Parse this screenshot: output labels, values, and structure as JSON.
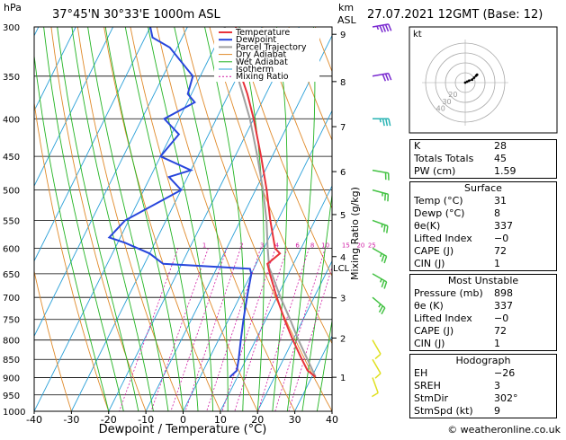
{
  "header": {
    "pressure_unit": "hPa",
    "location": "37°45'N  30°33'E  1000m  ASL",
    "height_unit_line1": "km",
    "height_unit_line2": "ASL",
    "datetime": "27.07.2021  12GMT  (Base: 12)",
    "mixing_ratio_axis_label": "Mixing Ratio (g/kg)",
    "footer": "© weatheronline.co.uk"
  },
  "legend": [
    "Temperature",
    "Dewpoint",
    "Parcel Trajectory",
    "Dry Adiabat",
    "Wet Adiabat",
    "Isotherm",
    "Mixing Ratio"
  ],
  "colors": {
    "temperature": "#e8323a",
    "dewpoint": "#2846dc",
    "parcel": "#a0a0a0",
    "dry_adiabat": "#e08a2a",
    "wet_adiabat": "#22b422",
    "isotherm": "#2aa0d8",
    "mixing_ratio": "#d01ca4",
    "wind_upper": "#7a2ad0",
    "wind_mid": "#2ab4b4",
    "wind_low": "#44c244",
    "wind_sfc": "#e0e020"
  },
  "chart_data": {
    "type": "skew-t",
    "title": "37°45'N  30°33'E  1000m  ASL",
    "xlabel": "Dewpoint / Temperature (°C)",
    "ylabel": "hPa",
    "xlim": [
      -40,
      40
    ],
    "ylim": [
      1000,
      300
    ],
    "x_ticks": [
      -40,
      -30,
      -20,
      -10,
      0,
      10,
      20,
      30,
      40
    ],
    "pressure_levels": [
      300,
      350,
      400,
      450,
      500,
      550,
      600,
      650,
      700,
      750,
      800,
      850,
      900,
      950,
      1000
    ],
    "km_ticks": [
      {
        "label": "9",
        "p": 307
      },
      {
        "label": "8",
        "p": 356
      },
      {
        "label": "7",
        "p": 410
      },
      {
        "label": "6",
        "p": 472
      },
      {
        "label": "5",
        "p": 540
      },
      {
        "label": "4",
        "p": 616
      },
      {
        "label": "3",
        "p": 701
      },
      {
        "label": "2",
        "p": 795
      },
      {
        "label": "1",
        "p": 899
      }
    ],
    "lcl": {
      "label": "LCL",
      "p": 638
    },
    "mixing_ratio_labels": [
      {
        "label": "1",
        "t": -16
      },
      {
        "label": "2",
        "t": -6
      },
      {
        "label": "3",
        "t": -0.5
      },
      {
        "label": "4",
        "t": 3.5
      },
      {
        "label": "6",
        "t": 9
      },
      {
        "label": "8",
        "t": 13
      },
      {
        "label": "10",
        "t": 16.5
      },
      {
        "label": "15",
        "t": 22
      },
      {
        "label": "20",
        "t": 26
      },
      {
        "label": "25",
        "t": 29
      }
    ],
    "series": [
      {
        "name": "Temperature",
        "points": [
          {
            "p": 898,
            "t": 31
          },
          {
            "p": 880,
            "t": 28
          },
          {
            "p": 850,
            "t": 25
          },
          {
            "p": 800,
            "t": 20
          },
          {
            "p": 750,
            "t": 15
          },
          {
            "p": 700,
            "t": 10
          },
          {
            "p": 650,
            "t": 5
          },
          {
            "p": 630,
            "t": 3
          },
          {
            "p": 610,
            "t": 5
          },
          {
            "p": 600,
            "t": 3
          },
          {
            "p": 550,
            "t": -2
          },
          {
            "p": 500,
            "t": -7
          },
          {
            "p": 450,
            "t": -13
          },
          {
            "p": 400,
            "t": -20
          },
          {
            "p": 370,
            "t": -25
          },
          {
            "p": 350,
            "t": -29
          },
          {
            "p": 320,
            "t": -34
          },
          {
            "p": 300,
            "t": -37
          }
        ]
      },
      {
        "name": "Dewpoint",
        "points": [
          {
            "p": 898,
            "t": 8
          },
          {
            "p": 880,
            "t": 9
          },
          {
            "p": 850,
            "t": 8
          },
          {
            "p": 800,
            "t": 6
          },
          {
            "p": 750,
            "t": 4
          },
          {
            "p": 700,
            "t": 2
          },
          {
            "p": 650,
            "t": 0
          },
          {
            "p": 640,
            "t": -1
          },
          {
            "p": 630,
            "t": -25
          },
          {
            "p": 610,
            "t": -30
          },
          {
            "p": 590,
            "t": -38
          },
          {
            "p": 580,
            "t": -43
          },
          {
            "p": 550,
            "t": -41
          },
          {
            "p": 500,
            "t": -30
          },
          {
            "p": 480,
            "t": -35
          },
          {
            "p": 470,
            "t": -30
          },
          {
            "p": 450,
            "t": -40
          },
          {
            "p": 420,
            "t": -38
          },
          {
            "p": 400,
            "t": -44
          },
          {
            "p": 380,
            "t": -38
          },
          {
            "p": 370,
            "t": -41
          },
          {
            "p": 350,
            "t": -42
          },
          {
            "p": 320,
            "t": -52
          },
          {
            "p": 310,
            "t": -58
          },
          {
            "p": 300,
            "t": -60
          }
        ]
      },
      {
        "name": "Parcel Trajectory",
        "points": [
          {
            "p": 898,
            "t": 31
          },
          {
            "p": 850,
            "t": 26.5
          },
          {
            "p": 800,
            "t": 21.5
          },
          {
            "p": 750,
            "t": 16.5
          },
          {
            "p": 700,
            "t": 11
          },
          {
            "p": 650,
            "t": 5.5
          },
          {
            "p": 638,
            "t": 4
          },
          {
            "p": 600,
            "t": 1
          },
          {
            "p": 550,
            "t": -3
          },
          {
            "p": 500,
            "t": -8
          },
          {
            "p": 450,
            "t": -14
          },
          {
            "p": 400,
            "t": -21
          },
          {
            "p": 350,
            "t": -30
          },
          {
            "p": 300,
            "t": -40
          }
        ]
      }
    ],
    "hodograph": {
      "label": "kt",
      "ring_labels": [
        "40",
        "30",
        "20"
      ],
      "points": [
        [
          0,
          0
        ],
        [
          2,
          1
        ],
        [
          4,
          2
        ],
        [
          7,
          3
        ],
        [
          9,
          5
        ],
        [
          11,
          7
        ],
        [
          12,
          8
        ]
      ]
    },
    "wind_barbs": [
      {
        "p": 300,
        "dir": 260,
        "speed": 35,
        "band": "upper"
      },
      {
        "p": 350,
        "dir": 260,
        "speed": 30,
        "band": "upper"
      },
      {
        "p": 400,
        "dir": 270,
        "speed": 25,
        "band": "mid"
      },
      {
        "p": 470,
        "dir": 280,
        "speed": 20,
        "band": "low"
      },
      {
        "p": 500,
        "dir": 285,
        "speed": 15,
        "band": "low"
      },
      {
        "p": 550,
        "dir": 290,
        "speed": 15,
        "band": "low"
      },
      {
        "p": 600,
        "dir": 300,
        "speed": 15,
        "band": "low"
      },
      {
        "p": 650,
        "dir": 300,
        "speed": 15,
        "band": "low"
      },
      {
        "p": 700,
        "dir": 310,
        "speed": 15,
        "band": "low"
      },
      {
        "p": 800,
        "dir": 330,
        "speed": 10,
        "band": "sfc"
      },
      {
        "p": 850,
        "dir": 330,
        "speed": 10,
        "band": "sfc"
      },
      {
        "p": 900,
        "dir": 340,
        "speed": 10,
        "band": "sfc"
      }
    ]
  },
  "indices": {
    "rows": [
      {
        "label": "K",
        "value": "28"
      },
      {
        "label": "Totals Totals",
        "value": "45"
      },
      {
        "label": "PW (cm)",
        "value": "1.59"
      }
    ]
  },
  "surface": {
    "title": "Surface",
    "rows": [
      {
        "label": "Temp (°C)",
        "value": "31"
      },
      {
        "label": "Dewp (°C)",
        "value": "8"
      },
      {
        "label": "θe(K)",
        "value": "337"
      },
      {
        "label": "Lifted Index",
        "value": "−0"
      },
      {
        "label": "CAPE (J)",
        "value": "72"
      },
      {
        "label": "CIN (J)",
        "value": "1"
      }
    ]
  },
  "most_unstable": {
    "title": "Most Unstable",
    "rows": [
      {
        "label": "Pressure (mb)",
        "value": "898"
      },
      {
        "label": "θe (K)",
        "value": "337"
      },
      {
        "label": "Lifted Index",
        "value": "−0"
      },
      {
        "label": "CAPE (J)",
        "value": "72"
      },
      {
        "label": "CIN (J)",
        "value": "1"
      }
    ]
  },
  "hodograph_table": {
    "title": "Hodograph",
    "rows": [
      {
        "label": "EH",
        "value": "−26"
      },
      {
        "label": "SREH",
        "value": "3"
      },
      {
        "label": "StmDir",
        "value": "302°"
      },
      {
        "label": "StmSpd (kt)",
        "value": "9"
      }
    ]
  }
}
